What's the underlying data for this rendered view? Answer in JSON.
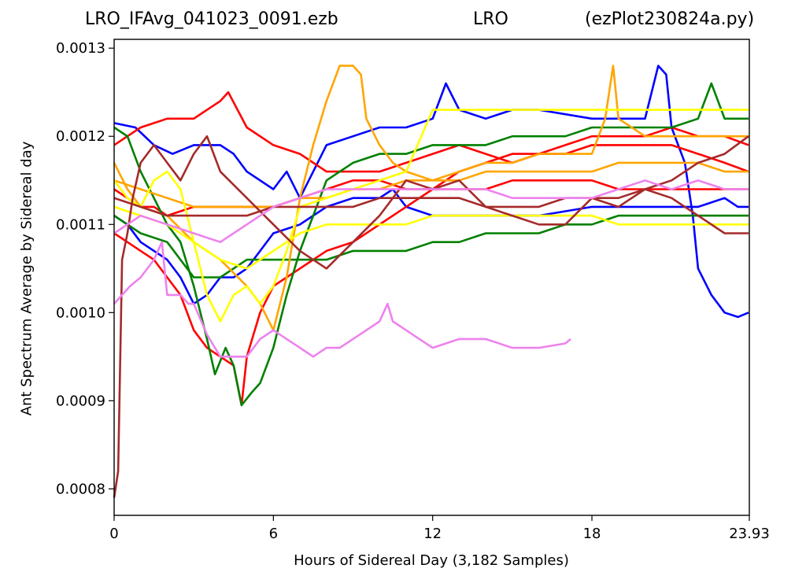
{
  "title": {
    "left": "LRO_IFAvg_041023_0091.ezb",
    "center": "LRO",
    "right": "(ezPlot230824a.py)"
  },
  "chart_data": {
    "type": "line",
    "xlabel": "Hours of Sidereal Day  (3,182 Samples)",
    "ylabel": "Ant Spectrum Average by Sidereal day",
    "xlim": [
      0,
      23.93
    ],
    "ylim": [
      0.00077,
      0.00131
    ],
    "x_ticks": [
      0,
      6,
      12,
      18,
      23.93
    ],
    "x_tick_labels": [
      "0",
      "6",
      "12",
      "18",
      "23.93"
    ],
    "y_ticks": [
      0.0008,
      0.0009,
      0.001,
      0.0011,
      0.0012,
      0.0013
    ],
    "y_tick_labels": [
      "0.0008",
      "0.0009",
      "0.0010",
      "0.0011",
      "0.0012",
      "0.0013"
    ],
    "grid": false,
    "legend": "none",
    "series": [
      {
        "color": "#0000ff",
        "x": [
          0,
          0.8,
          1.5,
          2.2,
          3,
          3.5,
          4,
          4.5,
          5,
          6,
          6.5,
          7,
          8,
          9,
          10,
          11,
          12,
          12.5,
          13,
          14,
          15,
          16,
          18,
          19,
          20,
          20.5,
          20.8,
          21,
          21.5,
          21.8,
          22,
          22.5,
          23,
          23.5,
          23.9
        ],
        "y": [
          0.001215,
          0.00121,
          0.00119,
          0.00118,
          0.00119,
          0.00119,
          0.00119,
          0.00118,
          0.00116,
          0.00114,
          0.00116,
          0.00113,
          0.00119,
          0.0012,
          0.00121,
          0.00121,
          0.00122,
          0.00126,
          0.00123,
          0.00122,
          0.00123,
          0.00123,
          0.00122,
          0.00122,
          0.00122,
          0.00128,
          0.00127,
          0.00121,
          0.00117,
          0.00111,
          0.00105,
          0.00102,
          0.001,
          0.000995,
          0.001
        ]
      },
      {
        "color": "#0000ff",
        "x": [
          0,
          0.5,
          1,
          2,
          2.5,
          3,
          3.5,
          4,
          4.5,
          5,
          5.5,
          6,
          7,
          8,
          9,
          9.5,
          10,
          10.5,
          11,
          12,
          14,
          16,
          18,
          20,
          22,
          23,
          23.5,
          23.9
        ],
        "y": [
          0.00111,
          0.0011,
          0.00108,
          0.00106,
          0.00104,
          0.00101,
          0.00102,
          0.00104,
          0.00104,
          0.00105,
          0.00107,
          0.00109,
          0.0011,
          0.00112,
          0.00113,
          0.00113,
          0.00113,
          0.00114,
          0.00112,
          0.00111,
          0.00111,
          0.00111,
          0.00112,
          0.00112,
          0.00112,
          0.00113,
          0.00112,
          0.00112
        ]
      },
      {
        "color": "#ff0000",
        "x": [
          0,
          0.5,
          1,
          2,
          3,
          4,
          4.3,
          5,
          6,
          7,
          8,
          9,
          10,
          11,
          12,
          13,
          14,
          15,
          16,
          17,
          18,
          19,
          20,
          21,
          22,
          23,
          23.9
        ],
        "y": [
          0.00119,
          0.0012,
          0.00121,
          0.00122,
          0.00122,
          0.00124,
          0.00125,
          0.00121,
          0.00119,
          0.00118,
          0.00116,
          0.00116,
          0.00116,
          0.00117,
          0.00118,
          0.00119,
          0.00118,
          0.00117,
          0.00118,
          0.00118,
          0.00119,
          0.00119,
          0.00119,
          0.00119,
          0.00118,
          0.00117,
          0.00116
        ]
      },
      {
        "color": "#ff0000",
        "x": [
          0,
          0.5,
          1,
          1.5,
          2,
          2.5,
          3,
          3.5,
          4,
          4.5,
          4.8,
          5,
          5.5,
          6,
          6.5,
          7,
          8,
          9,
          10,
          11,
          12,
          13,
          14,
          15,
          16,
          17,
          18,
          19,
          20,
          21,
          22,
          23,
          23.9
        ],
        "y": [
          0.00109,
          0.00108,
          0.00107,
          0.00106,
          0.00104,
          0.00102,
          0.00098,
          0.00096,
          0.00095,
          0.00094,
          0.000895,
          0.00095,
          0.001,
          0.00103,
          0.00104,
          0.00105,
          0.00107,
          0.00108,
          0.0011,
          0.00112,
          0.00114,
          0.00116,
          0.00117,
          0.00118,
          0.00118,
          0.00119,
          0.0012,
          0.0012,
          0.0012,
          0.00121,
          0.0012,
          0.0012,
          0.00119
        ]
      },
      {
        "color": "#ff0000",
        "x": [
          0,
          0.5,
          1,
          1.5,
          2,
          3,
          4,
          5,
          6,
          7,
          8,
          9,
          10,
          11,
          12,
          13,
          14,
          15,
          16,
          17,
          18,
          19,
          20,
          21,
          22,
          23,
          23.9
        ],
        "y": [
          0.00114,
          0.00113,
          0.00112,
          0.00112,
          0.00111,
          0.00112,
          0.00112,
          0.00112,
          0.00112,
          0.00113,
          0.00114,
          0.00115,
          0.00115,
          0.00114,
          0.00114,
          0.00114,
          0.00114,
          0.00115,
          0.00115,
          0.00115,
          0.00115,
          0.00114,
          0.00114,
          0.00114,
          0.00114,
          0.00114,
          0.00114
        ]
      },
      {
        "color": "#008000",
        "x": [
          0,
          0.5,
          1,
          1.5,
          2,
          2.5,
          3,
          3.5,
          3.8,
          4.2,
          4.5,
          4.8,
          5.2,
          5.5,
          6,
          6.5,
          7,
          8,
          9,
          10,
          11,
          12,
          13,
          14,
          15,
          16,
          17,
          18,
          19,
          20,
          21,
          22,
          22.5,
          23,
          23.5,
          23.9
        ],
        "y": [
          0.00121,
          0.0012,
          0.00116,
          0.00113,
          0.0011,
          0.00108,
          0.00103,
          0.00097,
          0.00093,
          0.00096,
          0.00094,
          0.000895,
          0.00091,
          0.00092,
          0.00096,
          0.00102,
          0.00107,
          0.00115,
          0.00117,
          0.00118,
          0.00118,
          0.00119,
          0.00119,
          0.00119,
          0.0012,
          0.0012,
          0.0012,
          0.00121,
          0.00121,
          0.00121,
          0.00121,
          0.00122,
          0.00126,
          0.00122,
          0.00122,
          0.00122
        ]
      },
      {
        "color": "#008000",
        "x": [
          0,
          1,
          2,
          3,
          4,
          5,
          6,
          7,
          8,
          9,
          10,
          11,
          12,
          13,
          14,
          15,
          16,
          17,
          18,
          19,
          20,
          21,
          22,
          23,
          23.9
        ],
        "y": [
          0.00111,
          0.00109,
          0.00108,
          0.00104,
          0.00104,
          0.00106,
          0.00106,
          0.00106,
          0.00106,
          0.00107,
          0.00107,
          0.00107,
          0.00108,
          0.00108,
          0.00109,
          0.00109,
          0.00109,
          0.0011,
          0.0011,
          0.00111,
          0.00111,
          0.00111,
          0.00111,
          0.00111,
          0.00111
        ]
      },
      {
        "color": "#ffa500",
        "x": [
          0,
          0.5,
          1,
          2,
          3,
          4,
          5,
          5.5,
          6,
          6.5,
          7,
          7.5,
          8,
          8.5,
          9,
          9.3,
          9.5,
          10,
          10.5,
          11,
          12,
          13,
          14,
          15,
          16,
          17,
          18,
          18.5,
          18.8,
          19,
          20,
          21,
          22,
          23,
          23.9
        ],
        "y": [
          0.00117,
          0.00114,
          0.00112,
          0.00111,
          0.00108,
          0.00106,
          0.00103,
          0.00101,
          0.00098,
          0.00104,
          0.00113,
          0.00119,
          0.00124,
          0.00128,
          0.00128,
          0.00127,
          0.00122,
          0.00119,
          0.00117,
          0.00116,
          0.00115,
          0.00116,
          0.00117,
          0.00117,
          0.00118,
          0.00118,
          0.00118,
          0.00122,
          0.00128,
          0.00122,
          0.0012,
          0.0012,
          0.0012,
          0.0012,
          0.0012
        ]
      },
      {
        "color": "#ffa500",
        "x": [
          0,
          1,
          2,
          3,
          4,
          5,
          6,
          7,
          8,
          9,
          10,
          11,
          12,
          13,
          14,
          15,
          16,
          17,
          18,
          19,
          20,
          21,
          22,
          23,
          23.9
        ],
        "y": [
          0.00115,
          0.00114,
          0.00113,
          0.00112,
          0.00112,
          0.00112,
          0.00112,
          0.00113,
          0.00113,
          0.00114,
          0.00114,
          0.00115,
          0.00115,
          0.00115,
          0.00116,
          0.00116,
          0.00116,
          0.00116,
          0.00116,
          0.00117,
          0.00117,
          0.00117,
          0.00117,
          0.00116,
          0.00116
        ]
      },
      {
        "color": "#ffff00",
        "x": [
          0,
          0.5,
          1,
          1.5,
          2,
          2.5,
          3,
          3.5,
          4,
          4.5,
          5,
          5.5,
          6,
          6.5,
          7,
          8,
          9,
          10,
          11,
          12,
          13,
          14,
          15,
          16,
          17,
          18,
          19,
          20,
          21,
          22,
          23,
          23.9
        ],
        "y": [
          0.00115,
          0.00113,
          0.00112,
          0.00115,
          0.00116,
          0.00114,
          0.00108,
          0.00102,
          0.00099,
          0.00102,
          0.00103,
          0.00101,
          0.00103,
          0.00107,
          0.00112,
          0.00113,
          0.00114,
          0.00115,
          0.00116,
          0.00123,
          0.00123,
          0.00123,
          0.00123,
          0.00123,
          0.00123,
          0.00123,
          0.00123,
          0.00123,
          0.00123,
          0.00123,
          0.00123,
          0.00123
        ]
      },
      {
        "color": "#ffff00",
        "x": [
          0,
          1,
          2,
          3,
          4,
          5,
          6,
          7,
          8,
          9,
          10,
          11,
          12,
          13,
          14,
          15,
          16,
          17,
          18,
          19,
          20,
          21,
          22,
          23,
          23.9
        ],
        "y": [
          0.00112,
          0.00111,
          0.0011,
          0.00108,
          0.00106,
          0.00105,
          0.00107,
          0.00109,
          0.0011,
          0.0011,
          0.0011,
          0.0011,
          0.00111,
          0.00111,
          0.00111,
          0.00111,
          0.00111,
          0.00111,
          0.00111,
          0.0011,
          0.0011,
          0.0011,
          0.0011,
          0.0011,
          0.0011
        ]
      },
      {
        "color": "#a52a2a",
        "x": [
          0,
          0.15,
          0.3,
          0.5,
          0.7,
          1,
          1.5,
          2,
          2.5,
          3,
          3.5,
          4,
          5,
          6,
          7,
          8,
          9,
          10,
          11,
          12,
          13,
          14,
          15,
          16,
          17,
          18,
          19,
          20,
          21,
          22,
          23,
          23.9
        ],
        "y": [
          0.00079,
          0.00082,
          0.00106,
          0.00109,
          0.00113,
          0.00117,
          0.00119,
          0.00117,
          0.00115,
          0.00118,
          0.0012,
          0.00116,
          0.00113,
          0.0011,
          0.00107,
          0.00105,
          0.00108,
          0.00111,
          0.00115,
          0.00114,
          0.00115,
          0.00112,
          0.00111,
          0.0011,
          0.0011,
          0.00113,
          0.00112,
          0.00114,
          0.00115,
          0.00117,
          0.00118,
          0.0012
        ]
      },
      {
        "color": "#a52a2a",
        "x": [
          0,
          1,
          2,
          3,
          4,
          5,
          6,
          7,
          8,
          9,
          10,
          11,
          12,
          13,
          14,
          15,
          16,
          17,
          18,
          19,
          20,
          21,
          22,
          23,
          23.9
        ],
        "y": [
          0.00113,
          0.00112,
          0.00111,
          0.00111,
          0.00111,
          0.00111,
          0.00112,
          0.00112,
          0.00112,
          0.00112,
          0.00113,
          0.00113,
          0.00113,
          0.00113,
          0.00112,
          0.00112,
          0.00112,
          0.00113,
          0.00113,
          0.00113,
          0.00114,
          0.00113,
          0.00111,
          0.00109,
          0.00109
        ]
      },
      {
        "color": "#ee82ee",
        "x": [
          0,
          0.3,
          0.6,
          1,
          1.5,
          1.8,
          2,
          2.5,
          2.8,
          3,
          3.5,
          4,
          4.5,
          5,
          5.5,
          6,
          6.5,
          7,
          7.5,
          8,
          8.5,
          9,
          9.5,
          10,
          10.3,
          10.5,
          11,
          11.5,
          12,
          13,
          14,
          15,
          16,
          17,
          17.2
        ],
        "y": [
          0.00101,
          0.00102,
          0.00103,
          0.00104,
          0.00106,
          0.00108,
          0.00102,
          0.00102,
          0.00101,
          0.00101,
          0.000975,
          0.00095,
          0.00095,
          0.00095,
          0.00097,
          0.00098,
          0.00097,
          0.00096,
          0.00095,
          0.00096,
          0.00096,
          0.00097,
          0.00098,
          0.00099,
          0.00101,
          0.00099,
          0.00098,
          0.00097,
          0.00096,
          0.00097,
          0.00097,
          0.00096,
          0.00096,
          0.000965,
          0.00097
        ]
      },
      {
        "color": "#ee82ee",
        "x": [
          0,
          1,
          2,
          3,
          4,
          5,
          6,
          7,
          8,
          9,
          10,
          11,
          12,
          13,
          14,
          15,
          16,
          17,
          18,
          19,
          20,
          21,
          22,
          23,
          23.9
        ],
        "y": [
          0.00109,
          0.00111,
          0.0011,
          0.00109,
          0.00108,
          0.0011,
          0.00112,
          0.00113,
          0.00114,
          0.00114,
          0.00114,
          0.00114,
          0.00114,
          0.00114,
          0.00114,
          0.00113,
          0.00113,
          0.00113,
          0.00113,
          0.00114,
          0.00115,
          0.00114,
          0.00115,
          0.00114,
          0.00114
        ]
      }
    ]
  }
}
